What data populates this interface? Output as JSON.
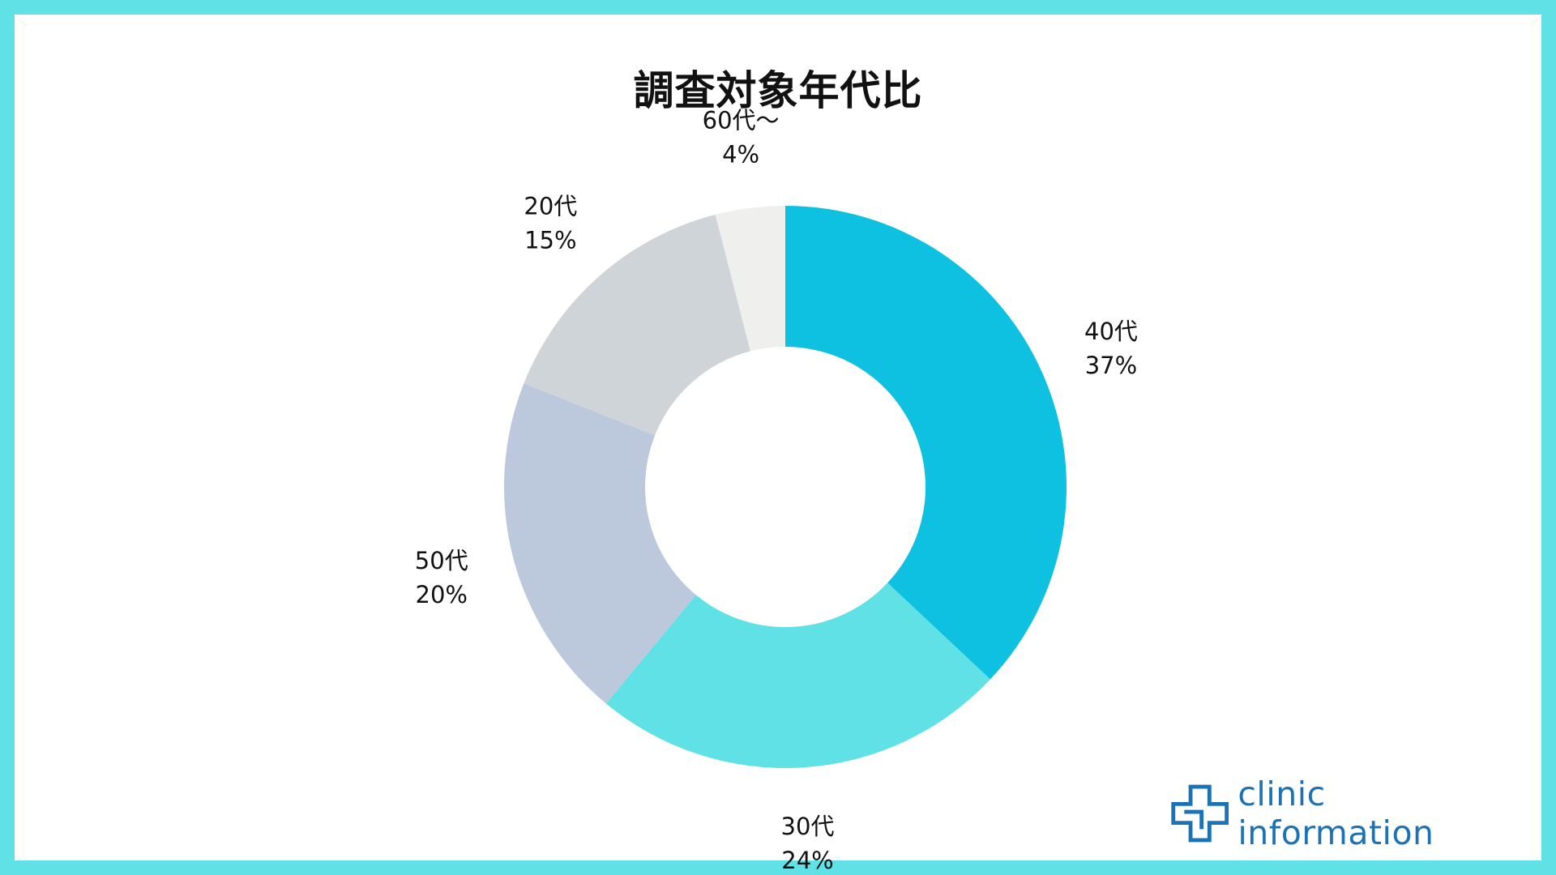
{
  "chart_data": {
    "type": "pie",
    "variant": "donut",
    "title": "調査対象年代比",
    "slices": [
      {
        "label": "40代",
        "value": 37,
        "value_label": "37%",
        "color": "#0fc1e0"
      },
      {
        "label": "30代",
        "value": 24,
        "value_label": "24%",
        "color": "#5fe1e6"
      },
      {
        "label": "50代",
        "value": 20,
        "value_label": "20%",
        "color": "#bcc8dc"
      },
      {
        "label": "20代",
        "value": 15,
        "value_label": "15%",
        "color": "#cfd4d8"
      },
      {
        "label": "60代～",
        "value": 4,
        "value_label": "4%",
        "color": "#efefed"
      }
    ],
    "start_angle": "12 o'clock",
    "direction": "clockwise",
    "legend": "none"
  },
  "branding": {
    "logo_text": "clinic information",
    "logo_icon": "medical-cross-icon",
    "frame_color": "#5fe1e6",
    "logo_color": "#1b73b7"
  }
}
